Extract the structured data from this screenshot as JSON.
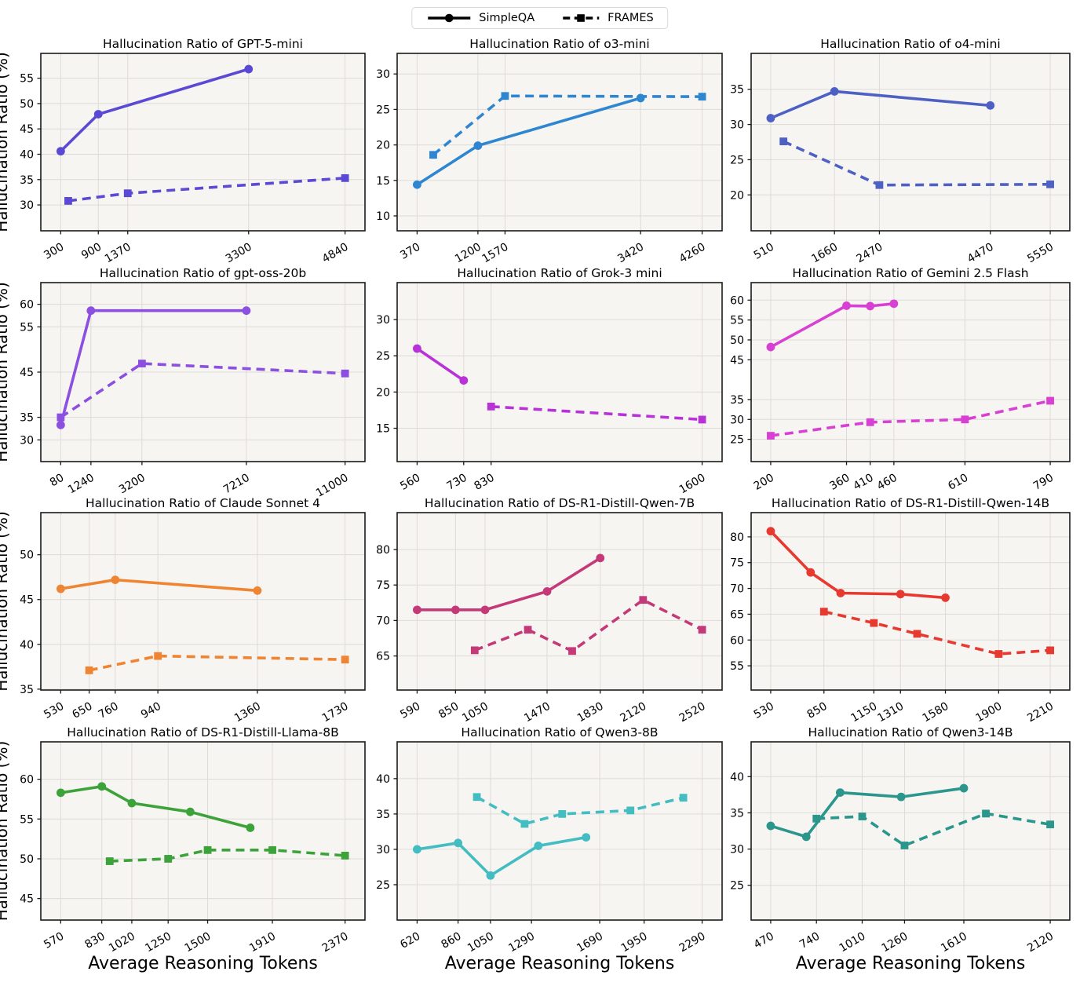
{
  "figure_title": "",
  "legend": {
    "simpleqa": "SimpleQA",
    "frames": "FRAMES"
  },
  "axis": {
    "ylabel": "Hallucination Ratio (%)",
    "xlabel": "Average Reasoning Tokens"
  },
  "colors": {
    "plot_bg": "#f7f5f2",
    "grid": "#dedbd7",
    "text": "#000000",
    "spine": "#1a1a1a",
    "legend_line": "#000000"
  },
  "chart_data": [
    {
      "type": "line",
      "id": "gpt-5-mini",
      "title": "Hallucination Ratio of GPT-5-mini",
      "color": "#5a49d4",
      "xticks": [
        300,
        900,
        1370,
        3300,
        4840
      ],
      "yticks": [
        30,
        35,
        40,
        45,
        50,
        55
      ],
      "ylim": [
        24.9,
        59.9
      ],
      "series": [
        {
          "name": "SimpleQA",
          "style": "solid",
          "marker": "circle",
          "x": [
            300,
            900,
            3300
          ],
          "y": [
            40.6,
            47.9,
            56.8
          ]
        },
        {
          "name": "FRAMES",
          "style": "dashed",
          "marker": "square",
          "x": [
            420,
            1370,
            4840
          ],
          "y": [
            30.8,
            32.3,
            35.3
          ]
        }
      ]
    },
    {
      "type": "line",
      "id": "o3-mini",
      "title": "Hallucination Ratio of o3-mini",
      "color": "#2e86d1",
      "xticks": [
        370,
        1200,
        1570,
        3420,
        4260
      ],
      "yticks": [
        10,
        15,
        20,
        25,
        30
      ],
      "ylim": [
        7.9,
        32.9
      ],
      "series": [
        {
          "name": "SimpleQA",
          "style": "solid",
          "marker": "circle",
          "x": [
            370,
            1200,
            3420
          ],
          "y": [
            14.4,
            19.9,
            26.6
          ]
        },
        {
          "name": "FRAMES",
          "style": "dashed",
          "marker": "square",
          "x": [
            590,
            1570,
            4260
          ],
          "y": [
            18.6,
            26.9,
            26.8
          ]
        }
      ]
    },
    {
      "type": "line",
      "id": "o4-mini",
      "title": "Hallucination Ratio of o4-mini",
      "color": "#4d60c4",
      "xticks": [
        510,
        1660,
        2470,
        4470,
        5550
      ],
      "yticks": [
        20,
        25,
        30,
        35
      ],
      "ylim": [
        14.9,
        40.1
      ],
      "series": [
        {
          "name": "SimpleQA",
          "style": "solid",
          "marker": "circle",
          "x": [
            510,
            1660,
            4470
          ],
          "y": [
            30.9,
            34.7,
            32.7
          ]
        },
        {
          "name": "FRAMES",
          "style": "dashed",
          "marker": "square",
          "x": [
            740,
            2470,
            5550
          ],
          "y": [
            27.6,
            21.4,
            21.5
          ]
        }
      ]
    },
    {
      "type": "line",
      "id": "gpt-oss-20b",
      "title": "Hallucination Ratio of gpt-oss-20b",
      "color": "#8c50e0",
      "xticks": [
        80,
        1240,
        3200,
        7210,
        11000
      ],
      "yticks": [
        30,
        35,
        45,
        55,
        60
      ],
      "ylim": [
        25.2,
        64.8
      ],
      "series": [
        {
          "name": "SimpleQA",
          "style": "solid",
          "marker": "circle",
          "x": [
            80,
            1240,
            7210
          ],
          "y": [
            33.3,
            58.6,
            58.6
          ]
        },
        {
          "name": "FRAMES",
          "style": "dashed",
          "marker": "square",
          "x": [
            80,
            3200,
            11000
          ],
          "y": [
            35.0,
            46.9,
            44.7
          ]
        }
      ]
    },
    {
      "type": "line",
      "id": "grok-3-mini",
      "title": "Hallucination Ratio of Grok-3 mini",
      "color": "#b832d8",
      "xticks": [
        560,
        730,
        830,
        1600
      ],
      "yticks": [
        15,
        20,
        25,
        30
      ],
      "ylim": [
        10.4,
        35.1
      ],
      "series": [
        {
          "name": "SimpleQA",
          "style": "solid",
          "marker": "circle",
          "x": [
            560,
            730
          ],
          "y": [
            26.0,
            21.6
          ]
        },
        {
          "name": "FRAMES",
          "style": "dashed",
          "marker": "square",
          "x": [
            830,
            1600
          ],
          "y": [
            18.0,
            16.2
          ]
        }
      ]
    },
    {
      "type": "line",
      "id": "gemini-2-5-flash",
      "title": "Hallucination Ratio of Gemini 2.5 Flash",
      "color": "#d840d4",
      "xticks": [
        200,
        360,
        410,
        460,
        610,
        790
      ],
      "yticks": [
        25,
        30,
        35,
        45,
        50,
        55,
        60
      ],
      "ylim": [
        19.4,
        64.4
      ],
      "series": [
        {
          "name": "SimpleQA",
          "style": "solid",
          "marker": "circle",
          "x": [
            200,
            360,
            410,
            460
          ],
          "y": [
            48.2,
            58.6,
            58.5,
            59.1
          ]
        },
        {
          "name": "FRAMES",
          "style": "dashed",
          "marker": "square",
          "x": [
            200,
            410,
            610,
            790
          ],
          "y": [
            25.9,
            29.3,
            30.0,
            34.7
          ]
        }
      ]
    },
    {
      "type": "line",
      "id": "claude-sonnet-4",
      "title": "Hallucination Ratio of Claude Sonnet 4",
      "color": "#ef8533",
      "xticks": [
        530,
        650,
        760,
        940,
        1360,
        1730
      ],
      "yticks": [
        35,
        40,
        45,
        50
      ],
      "ylim": [
        34.9,
        54.7
      ],
      "series": [
        {
          "name": "SimpleQA",
          "style": "solid",
          "marker": "circle",
          "x": [
            530,
            760,
            1360
          ],
          "y": [
            46.2,
            47.2,
            46.0
          ]
        },
        {
          "name": "FRAMES",
          "style": "dashed",
          "marker": "square",
          "x": [
            650,
            940,
            1730
          ],
          "y": [
            37.1,
            38.7,
            38.3
          ]
        }
      ]
    },
    {
      "type": "line",
      "id": "ds-r1-distill-qwen-7b",
      "title": "Hallucination Ratio of DS-R1-Distill-Qwen-7B",
      "color": "#c43a78",
      "xticks": [
        590,
        850,
        1050,
        1470,
        1830,
        2120,
        2520
      ],
      "yticks": [
        65,
        70,
        75,
        80
      ],
      "ylim": [
        60.2,
        85.2
      ],
      "series": [
        {
          "name": "SimpleQA",
          "style": "solid",
          "marker": "circle",
          "x": [
            590,
            850,
            1050,
            1470,
            1830
          ],
          "y": [
            71.5,
            71.5,
            71.5,
            74.1,
            78.8
          ]
        },
        {
          "name": "FRAMES",
          "style": "dashed",
          "marker": "square",
          "x": [
            980,
            1340,
            1640,
            2120,
            2520
          ],
          "y": [
            65.8,
            68.7,
            65.7,
            72.9,
            68.7
          ]
        }
      ]
    },
    {
      "type": "line",
      "id": "ds-r1-distill-qwen-14b",
      "title": "Hallucination Ratio of DS-R1-Distill-Qwen-14B",
      "color": "#e6392f",
      "xticks": [
        530,
        850,
        1150,
        1310,
        1580,
        1900,
        2210
      ],
      "yticks": [
        55,
        60,
        65,
        70,
        75,
        80
      ],
      "ylim": [
        50.3,
        84.7
      ],
      "series": [
        {
          "name": "SimpleQA",
          "style": "solid",
          "marker": "circle",
          "x": [
            530,
            770,
            950,
            1310,
            1580
          ],
          "y": [
            81.1,
            73.1,
            69.1,
            68.9,
            68.2
          ]
        },
        {
          "name": "FRAMES",
          "style": "dashed",
          "marker": "square",
          "x": [
            850,
            1150,
            1410,
            1900,
            2210
          ],
          "y": [
            65.5,
            63.3,
            61.2,
            57.3,
            58.0
          ]
        }
      ]
    },
    {
      "type": "line",
      "id": "ds-r1-distill-llama-8b",
      "title": "Hallucination Ratio of DS-R1-Distill-Llama-8B",
      "color": "#3ca23a",
      "xticks": [
        570,
        830,
        1020,
        1250,
        1500,
        1910,
        2370
      ],
      "yticks": [
        45,
        50,
        55,
        60
      ],
      "ylim": [
        42.3,
        64.7
      ],
      "series": [
        {
          "name": "SimpleQA",
          "style": "solid",
          "marker": "circle",
          "x": [
            570,
            830,
            1020,
            1390,
            1770
          ],
          "y": [
            58.3,
            59.1,
            57.0,
            55.9,
            53.9
          ]
        },
        {
          "name": "FRAMES",
          "style": "dashed",
          "marker": "square",
          "x": [
            880,
            1250,
            1500,
            1910,
            2370
          ],
          "y": [
            49.7,
            50.0,
            51.1,
            51.1,
            50.4
          ]
        }
      ]
    },
    {
      "type": "line",
      "id": "qwen3-8b",
      "title": "Hallucination Ratio of Qwen3-8B",
      "color": "#43bdc2",
      "xticks": [
        620,
        860,
        1050,
        1290,
        1690,
        1950,
        2290
      ],
      "yticks": [
        25,
        30,
        35,
        40
      ],
      "ylim": [
        20.0,
        45.2
      ],
      "series": [
        {
          "name": "SimpleQA",
          "style": "solid",
          "marker": "circle",
          "x": [
            620,
            860,
            1050,
            1330,
            1610
          ],
          "y": [
            30.0,
            30.9,
            26.3,
            30.5,
            31.7
          ]
        },
        {
          "name": "FRAMES",
          "style": "dashed",
          "marker": "square",
          "x": [
            970,
            1250,
            1470,
            1870,
            2180
          ],
          "y": [
            37.4,
            33.6,
            35.0,
            35.5,
            37.3
          ]
        }
      ]
    },
    {
      "type": "line",
      "id": "qwen3-14b",
      "title": "Hallucination Ratio of Qwen3-14B",
      "color": "#2a968c",
      "xticks": [
        470,
        740,
        1010,
        1260,
        1610,
        2120
      ],
      "yticks": [
        25,
        30,
        35,
        40
      ],
      "ylim": [
        20.2,
        44.8
      ],
      "series": [
        {
          "name": "SimpleQA",
          "style": "solid",
          "marker": "circle",
          "x": [
            470,
            680,
            880,
            1240,
            1610
          ],
          "y": [
            33.2,
            31.7,
            37.8,
            37.2,
            38.4
          ]
        },
        {
          "name": "FRAMES",
          "style": "dashed",
          "marker": "square",
          "x": [
            740,
            1010,
            1260,
            1740,
            2120
          ],
          "y": [
            34.2,
            34.5,
            30.5,
            34.9,
            33.4
          ]
        }
      ]
    }
  ]
}
